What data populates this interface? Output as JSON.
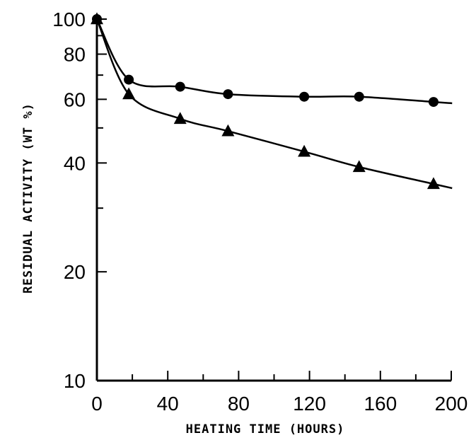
{
  "chart_data": {
    "type": "scatter",
    "title": "",
    "xlabel": "HEATING TIME (HOURS)",
    "ylabel": "RESIDUAL ACTIVITY (WT %)",
    "xlim": [
      0,
      200
    ],
    "ylim": [
      10,
      100
    ],
    "yscale": "log",
    "grid": false,
    "x_ticks": [
      0,
      40,
      80,
      120,
      160,
      200
    ],
    "x_tick_labels": [
      "0",
      "40",
      "80",
      "120",
      "160",
      "200"
    ],
    "y_ticks": [
      10,
      20,
      40,
      60,
      80,
      100
    ],
    "y_tick_labels": [
      "10",
      "20",
      "40",
      "60",
      "80",
      "100"
    ],
    "series": [
      {
        "marker": "circle",
        "x": [
          0,
          18,
          47,
          74,
          117,
          148,
          190
        ],
        "y": [
          100,
          68,
          65,
          62,
          61,
          61,
          59
        ]
      },
      {
        "marker": "triangle",
        "x": [
          0,
          18,
          47,
          74,
          117,
          148,
          190
        ],
        "y": [
          100,
          62,
          53,
          49,
          43,
          39,
          35
        ]
      }
    ]
  }
}
